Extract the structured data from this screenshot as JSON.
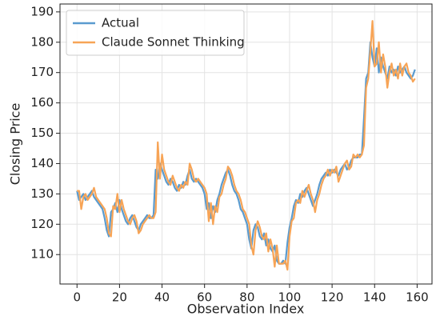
{
  "chart_data": {
    "type": "line",
    "x_label": "Observation Index",
    "y_label": "Closing Price",
    "xlim": [
      -8,
      167
    ],
    "ylim": [
      100.3,
      192.6
    ],
    "xticks": [
      0,
      20,
      40,
      60,
      80,
      100,
      120,
      140,
      160
    ],
    "yticks": [
      110,
      120,
      130,
      140,
      150,
      160,
      170,
      180,
      190
    ],
    "grid": true,
    "legend": "upper left",
    "series": [
      {
        "name": "Actual",
        "color": "#5a9bcf",
        "values": [
          131,
          128,
          129,
          130,
          128,
          129,
          130,
          131,
          129,
          128,
          127,
          126,
          125,
          122,
          118,
          116,
          124,
          125,
          127,
          124,
          128,
          125,
          123,
          121,
          120,
          122,
          123,
          121,
          119,
          118,
          120,
          121,
          122,
          123,
          122,
          122,
          123,
          138,
          135,
          140,
          138,
          136,
          134,
          133,
          135,
          134,
          132,
          131,
          133,
          132,
          134,
          133,
          136,
          138,
          135,
          134,
          135,
          134,
          133,
          132,
          130,
          125,
          127,
          122,
          126,
          124,
          128,
          130,
          133,
          135,
          137,
          138,
          136,
          133,
          131,
          130,
          128,
          125,
          124,
          122,
          120,
          115,
          112,
          118,
          120,
          119,
          116,
          115,
          117,
          113,
          115,
          112,
          111,
          113,
          108,
          107,
          107,
          108,
          107,
          114,
          119,
          122,
          126,
          128,
          127,
          130,
          129,
          131,
          132,
          130,
          128,
          126,
          128,
          130,
          133,
          135,
          136,
          137,
          136,
          138,
          137,
          138,
          137,
          136,
          138,
          139,
          140,
          138,
          139,
          141,
          142,
          142,
          142,
          143,
          143,
          155,
          168,
          170,
          180,
          175,
          172,
          178,
          170,
          175,
          172,
          170,
          168,
          172,
          170,
          171,
          169,
          172,
          170,
          171,
          172,
          170,
          169,
          168,
          169,
          171
        ]
      },
      {
        "name": "Claude Sonnet Thinking",
        "color": "#f7a456",
        "values": [
          131,
          131,
          125,
          129,
          130,
          128,
          129,
          130,
          132,
          129,
          128,
          127,
          126,
          125,
          122,
          117,
          116,
          126,
          125,
          130,
          124,
          128,
          125,
          123,
          121,
          120,
          122,
          123,
          121,
          117,
          118,
          120,
          121,
          122,
          123,
          122,
          122,
          124,
          147,
          135,
          143,
          138,
          136,
          134,
          133,
          136,
          134,
          132,
          131,
          133,
          132,
          134,
          133,
          140,
          138,
          135,
          134,
          135,
          134,
          133,
          132,
          130,
          121,
          127,
          120,
          126,
          124,
          129,
          130,
          133,
          135,
          139,
          138,
          136,
          133,
          131,
          130,
          128,
          125,
          124,
          122,
          120,
          113,
          110,
          118,
          121,
          119,
          116,
          115,
          117,
          111,
          115,
          112,
          106,
          113,
          107,
          107,
          107,
          108,
          105,
          116,
          121,
          122,
          127,
          128,
          127,
          131,
          129,
          131,
          133,
          130,
          128,
          124,
          128,
          130,
          133,
          135,
          136,
          138,
          136,
          138,
          137,
          139,
          134,
          136,
          138,
          140,
          141,
          138,
          139,
          143,
          142,
          143,
          142,
          143,
          146,
          165,
          168,
          177,
          187,
          172,
          173,
          180,
          170,
          176,
          172,
          165,
          170,
          173,
          169,
          171,
          168,
          173,
          169,
          172,
          173,
          170,
          169,
          167,
          168
        ]
      }
    ]
  }
}
